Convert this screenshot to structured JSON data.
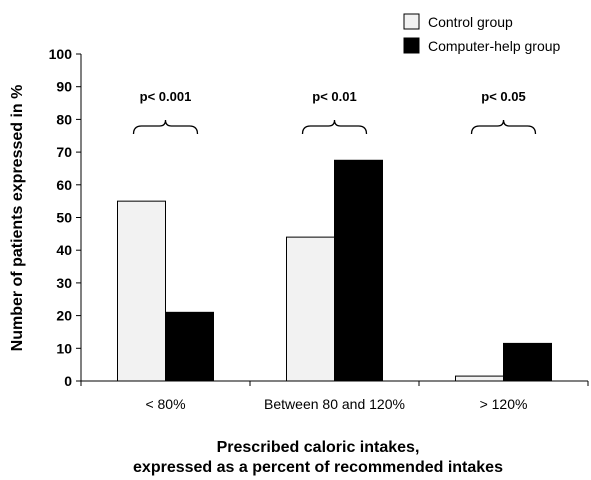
{
  "chart_data": {
    "type": "bar",
    "categories": [
      "< 80%",
      "Between 80 and 120%",
      "> 120%"
    ],
    "series": [
      {
        "name": "Control group",
        "values": [
          55,
          44,
          1.5
        ],
        "color": "#f2f2f2"
      },
      {
        "name": "Computer-help group",
        "values": [
          21,
          67.5,
          11.5
        ],
        "color": "#000000"
      }
    ],
    "ylabel": "Number of patients expressed in %",
    "xlabel": [
      "Prescribed caloric intakes,",
      "expressed as a percent of recommended intakes"
    ],
    "ylim": [
      0,
      100
    ],
    "yticks": [
      0,
      10,
      20,
      30,
      40,
      50,
      60,
      70,
      80,
      90,
      100
    ],
    "annotations": [
      "p< 0.001",
      "p< 0.01",
      "p< 0.05"
    ],
    "legend_position": "top-right",
    "grid": false
  }
}
